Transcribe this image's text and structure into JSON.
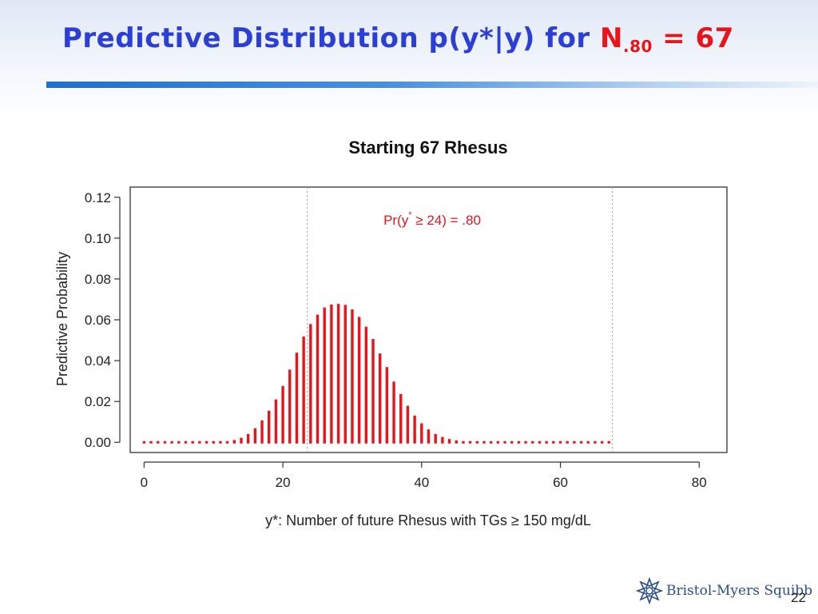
{
  "slide": {
    "title_main": "Predictive Distribution p(y*|y) for ",
    "title_symbol": "N",
    "title_subscript": ".80",
    "title_value": " = 67",
    "title_color": "#2b3fd6",
    "highlight_color": "#e8141a",
    "page_number": "22",
    "logo_text": "Bristol-Myers Squibb"
  },
  "chart_data": {
    "type": "bar",
    "title": "Starting 67 Rhesus",
    "xlabel": "y*: Number of future Rhesus with TGs ≥ 150 mg/dL",
    "ylabel": "Predictive Probability",
    "xlim": [
      -2,
      84
    ],
    "ylim": [
      -0.005,
      0.125
    ],
    "x_ticks": [
      0,
      20,
      40,
      60,
      80
    ],
    "x_tick_labels": [
      "0",
      "20",
      "40",
      "60",
      "80"
    ],
    "y_ticks": [
      0,
      0.02,
      0.04,
      0.06,
      0.08,
      0.1,
      0.12
    ],
    "y_tick_labels": [
      "0.00",
      "0.02",
      "0.04",
      "0.06",
      "0.08",
      "0.10",
      "0.12"
    ],
    "vlines": [
      23.5,
      67.5
    ],
    "annotation": "Pr(y* ≥ 24) = .80",
    "annotation_at": [
      41,
      0.11
    ],
    "bar_color": "#e8141a",
    "x": [
      0,
      1,
      2,
      3,
      4,
      5,
      6,
      7,
      8,
      9,
      10,
      11,
      12,
      13,
      14,
      15,
      16,
      17,
      18,
      19,
      20,
      21,
      22,
      23,
      24,
      25,
      26,
      27,
      28,
      29,
      30,
      31,
      32,
      33,
      34,
      35,
      36,
      37,
      38,
      39,
      40,
      41,
      42,
      43,
      44,
      45,
      46,
      47,
      48,
      49,
      50,
      51,
      52,
      53,
      54,
      55,
      56,
      57,
      58,
      59,
      60,
      61,
      62,
      63,
      64,
      65,
      66,
      67
    ],
    "values": [
      0,
      0,
      0,
      0,
      0,
      0,
      0,
      0,
      0,
      0,
      0.0001,
      0.0002,
      0.0005,
      0.0011,
      0.0022,
      0.0041,
      0.0069,
      0.0107,
      0.0155,
      0.021,
      0.0276,
      0.0356,
      0.0439,
      0.0518,
      0.0579,
      0.0625,
      0.066,
      0.0675,
      0.0678,
      0.0673,
      0.0651,
      0.0614,
      0.0566,
      0.0506,
      0.0435,
      0.0368,
      0.0297,
      0.0236,
      0.0179,
      0.0131,
      0.0093,
      0.0063,
      0.0041,
      0.0026,
      0.0016,
      0.0009,
      0.0005,
      0.0003,
      0.0001,
      0.0001,
      0,
      0,
      0,
      0,
      0,
      0,
      0,
      0,
      0,
      0,
      0,
      0,
      0,
      0,
      0,
      0,
      0,
      0
    ]
  }
}
